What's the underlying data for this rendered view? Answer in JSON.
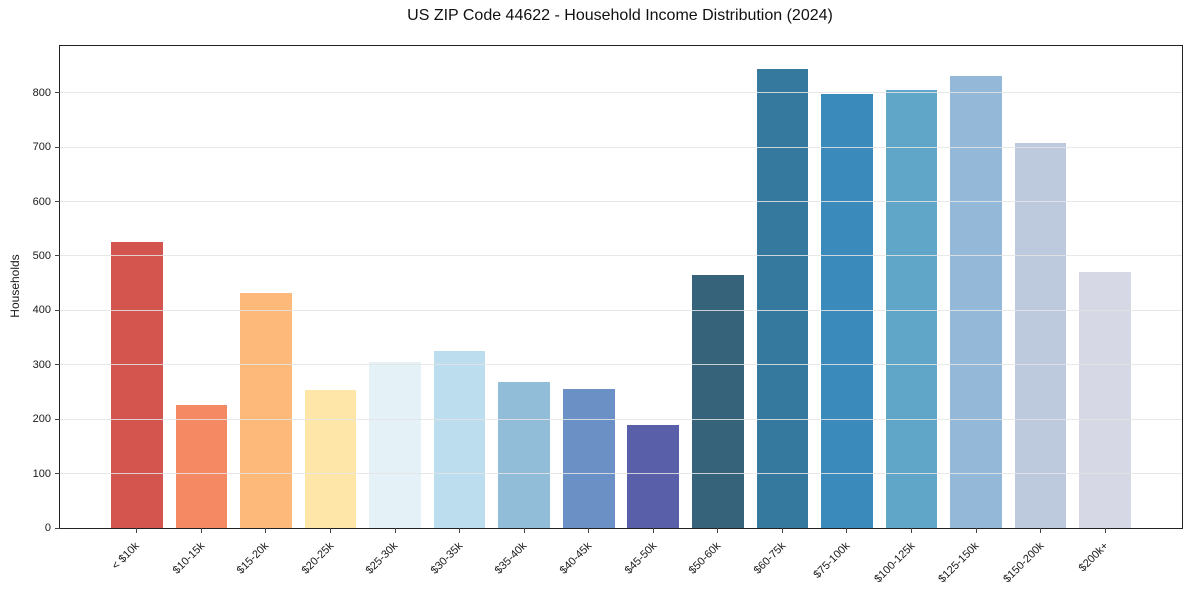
{
  "chart_data": {
    "type": "bar",
    "title": "US ZIP Code 44622 - Household Income Distribution (2024)",
    "xlabel": "",
    "ylabel": "Households",
    "categories": [
      "< $10k",
      "$10-15k",
      "$15-20k",
      "$20-25k",
      "$25-30k",
      "$30-35k",
      "$35-40k",
      "$40-45k",
      "$45-50k",
      "$50-60k",
      "$60-75k",
      "$75-100k",
      "$100-125k",
      "$125-150k",
      "$150-200k",
      "$200k+"
    ],
    "values": [
      525,
      227,
      432,
      254,
      306,
      325,
      268,
      255,
      190,
      465,
      843,
      798,
      806,
      830,
      708,
      471
    ],
    "bar_colors": [
      "#d4554e",
      "#f58963",
      "#fcb97a",
      "#fde6a8",
      "#e4f2f8",
      "#bcdded",
      "#92bdd9",
      "#6b90c6",
      "#5a5fa9",
      "#366379",
      "#35799f",
      "#3a8abc",
      "#60a6c8",
      "#93b8d8",
      "#bdcade",
      "#d7d8e6"
    ],
    "ylim": [
      0,
      886
    ],
    "xlim": [
      -1.19,
      16.19
    ],
    "yticks": [
      0,
      100,
      200,
      300,
      400,
      500,
      600,
      700,
      800
    ],
    "bar_width_fraction": 0.8,
    "grid": "horizontal",
    "legend": "none",
    "x_tick_rotation": 45
  }
}
